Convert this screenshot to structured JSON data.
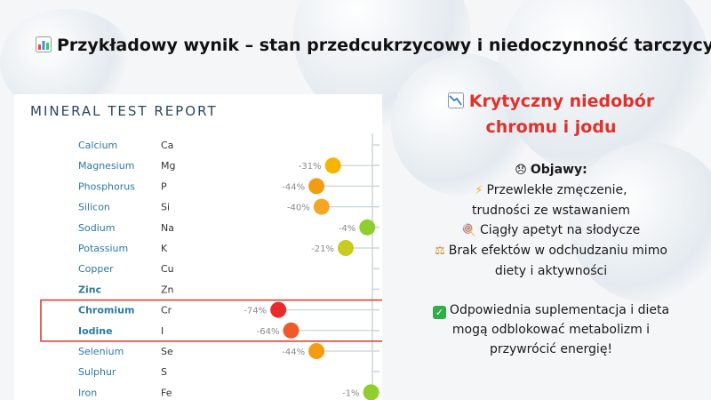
{
  "headline": {
    "icon": "bar-chart-icon",
    "text": "Przykładowy wynik – stan przedcukrzycowy  i niedoczynność tarczycy"
  },
  "report": {
    "title": "MINERAL TEST REPORT",
    "highlight_box_color": "#d9423a",
    "axis_color": "#c8d6de",
    "minerals": [
      {
        "name": "Calcium",
        "symbol": "Ca",
        "value": null,
        "label": "",
        "color": "",
        "bold": false
      },
      {
        "name": "Magnesium",
        "symbol": "Mg",
        "value": -31,
        "label": "-31%",
        "color": "#f4b400",
        "bold": false
      },
      {
        "name": "Phosphorus",
        "symbol": "P",
        "value": -44,
        "label": "-44%",
        "color": "#f39c12",
        "bold": false
      },
      {
        "name": "Silicon",
        "symbol": "Si",
        "value": -40,
        "label": "-40%",
        "color": "#f5a623",
        "bold": false
      },
      {
        "name": "Sodium",
        "symbol": "Na",
        "value": -4,
        "label": "-4%",
        "color": "#8fce2c",
        "bold": false
      },
      {
        "name": "Potassium",
        "symbol": "K",
        "value": -21,
        "label": "-21%",
        "color": "#c9cc1f",
        "bold": false
      },
      {
        "name": "Copper",
        "symbol": "Cu",
        "value": null,
        "label": "",
        "color": "",
        "bold": false
      },
      {
        "name": "Zinc",
        "symbol": "Zn",
        "value": null,
        "label": "",
        "color": "",
        "bold": true
      },
      {
        "name": "Chromium",
        "symbol": "Cr",
        "value": -74,
        "label": "-74%",
        "color": "#ea2b2b",
        "bold": true
      },
      {
        "name": "Iodine",
        "symbol": "I",
        "value": -64,
        "label": "-64%",
        "color": "#f05a28",
        "bold": true
      },
      {
        "name": "Selenium",
        "symbol": "Se",
        "value": -44,
        "label": "-44%",
        "color": "#f39c12",
        "bold": false
      },
      {
        "name": "Sulphur",
        "symbol": "S",
        "value": null,
        "label": "",
        "color": "",
        "bold": false
      },
      {
        "name": "Iron",
        "symbol": "Fe",
        "value": -1,
        "label": "-1%",
        "color": "#8fce2c",
        "bold": false
      }
    ],
    "highlighted": [
      "Chromium",
      "Iodine"
    ]
  },
  "panel": {
    "title_icon": "chart-decreasing-icon",
    "title_line1": "Krytyczny niedobór",
    "title_line2": "chromu i jodu",
    "symptoms_icon": "disappointed-face-icon",
    "symptoms_heading": "Objawy:",
    "fatigue_icon": "lightning-icon",
    "fatigue_line1": "Przewlekłe zmęczenie,",
    "fatigue_line2": "trudności ze wstawaniem",
    "sweets_icon": "lollipop-icon",
    "sweets_line": "Ciągły apetyt na słodycze",
    "weight_icon": "balance-scale-icon",
    "weight_line1": "Brak efektów w odchudzaniu mimo",
    "weight_line2": "diety i aktywności",
    "solution_icon": "check-mark-icon",
    "solution_line1": "Odpowiednia suplementacja i dieta",
    "solution_line2": "mogą odblokować metabolizm i",
    "solution_line3": "przywrócić energię!"
  }
}
